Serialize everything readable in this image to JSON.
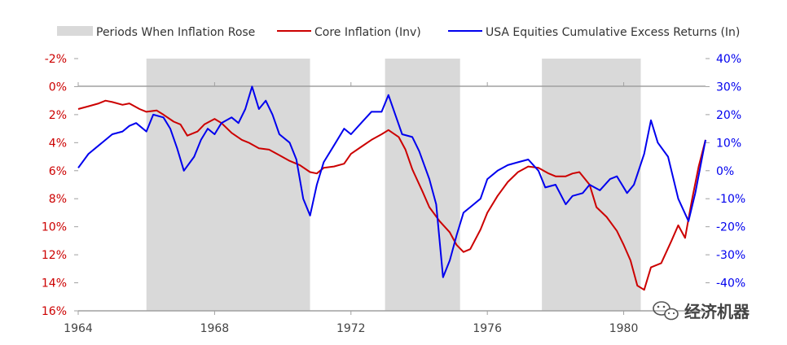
{
  "chart_data": {
    "type": "line",
    "title": "",
    "legend": {
      "placement": "top",
      "items": [
        {
          "label": "Periods When Inflation Rose",
          "kind": "band",
          "color": "#d9d9d9"
        },
        {
          "label": "Core Inflation (Inv)",
          "kind": "line",
          "color": "#cc0000"
        },
        {
          "label": "USA Equities Cumulative Excess Returns (In)",
          "kind": "line",
          "color": "#0000ee"
        }
      ]
    },
    "x_axis": {
      "range": [
        1964.0,
        1982.4
      ],
      "ticks": [
        1964,
        1968,
        1972,
        1976,
        1980
      ],
      "tick_labels": [
        "1964",
        "1968",
        "1972",
        "1976",
        "1980"
      ]
    },
    "left_axis": {
      "range_top_to_bottom": [
        -2,
        16
      ],
      "ticks": [
        -2,
        0,
        2,
        4,
        6,
        8,
        10,
        12,
        14,
        16
      ],
      "tick_labels": [
        "-2%",
        "0%",
        "2%",
        "4%",
        "6%",
        "8%",
        "10%",
        "12%",
        "14%",
        "16%"
      ],
      "color": "#cc0000"
    },
    "right_axis": {
      "range_top_to_bottom": [
        40,
        -50
      ],
      "ticks": [
        40,
        30,
        20,
        10,
        0,
        -10,
        -20,
        -30,
        -40
      ],
      "tick_labels": [
        "40%",
        "30%",
        "20%",
        "10%",
        "0%",
        "-10%",
        "-20%",
        "-30%",
        "-40%"
      ],
      "color": "#0000ee"
    },
    "shaded_periods": [
      {
        "start": 1966.0,
        "end": 1970.8
      },
      {
        "start": 1973.0,
        "end": 1975.2
      },
      {
        "start": 1977.6,
        "end": 1980.5
      }
    ],
    "series": [
      {
        "name": "Core Inflation (Inv)",
        "axis": "left",
        "color": "#cc0000",
        "points": [
          [
            1964.0,
            1.6
          ],
          [
            1964.3,
            1.4
          ],
          [
            1964.6,
            1.2
          ],
          [
            1964.8,
            1.0
          ],
          [
            1965.0,
            1.1
          ],
          [
            1965.3,
            1.3
          ],
          [
            1965.5,
            1.2
          ],
          [
            1965.8,
            1.6
          ],
          [
            1966.0,
            1.8
          ],
          [
            1966.3,
            1.7
          ],
          [
            1966.5,
            2.0
          ],
          [
            1966.8,
            2.5
          ],
          [
            1967.0,
            2.7
          ],
          [
            1967.2,
            3.5
          ],
          [
            1967.5,
            3.2
          ],
          [
            1967.7,
            2.7
          ],
          [
            1968.0,
            2.3
          ],
          [
            1968.2,
            2.6
          ],
          [
            1968.5,
            3.3
          ],
          [
            1968.8,
            3.8
          ],
          [
            1969.0,
            4.0
          ],
          [
            1969.3,
            4.4
          ],
          [
            1969.6,
            4.5
          ],
          [
            1969.9,
            4.9
          ],
          [
            1970.2,
            5.3
          ],
          [
            1970.5,
            5.6
          ],
          [
            1970.8,
            6.1
          ],
          [
            1971.0,
            6.2
          ],
          [
            1971.2,
            5.8
          ],
          [
            1971.5,
            5.7
          ],
          [
            1971.8,
            5.5
          ],
          [
            1972.0,
            4.8
          ],
          [
            1972.3,
            4.3
          ],
          [
            1972.6,
            3.8
          ],
          [
            1972.9,
            3.4
          ],
          [
            1973.1,
            3.1
          ],
          [
            1973.4,
            3.6
          ],
          [
            1973.6,
            4.5
          ],
          [
            1973.8,
            5.9
          ],
          [
            1974.1,
            7.5
          ],
          [
            1974.3,
            8.6
          ],
          [
            1974.6,
            9.6
          ],
          [
            1974.9,
            10.4
          ],
          [
            1975.1,
            11.3
          ],
          [
            1975.3,
            11.8
          ],
          [
            1975.5,
            11.6
          ],
          [
            1975.8,
            10.2
          ],
          [
            1976.0,
            9.0
          ],
          [
            1976.3,
            7.8
          ],
          [
            1976.6,
            6.8
          ],
          [
            1976.9,
            6.1
          ],
          [
            1977.2,
            5.7
          ],
          [
            1977.5,
            5.8
          ],
          [
            1977.8,
            6.2
          ],
          [
            1978.0,
            6.4
          ],
          [
            1978.3,
            6.4
          ],
          [
            1978.5,
            6.2
          ],
          [
            1978.7,
            6.1
          ],
          [
            1979.0,
            7.0
          ],
          [
            1979.2,
            8.6
          ],
          [
            1979.5,
            9.3
          ],
          [
            1979.8,
            10.3
          ],
          [
            1980.0,
            11.3
          ],
          [
            1980.2,
            12.4
          ],
          [
            1980.4,
            14.2
          ],
          [
            1980.6,
            14.5
          ],
          [
            1980.8,
            12.9
          ],
          [
            1981.1,
            12.6
          ],
          [
            1981.4,
            11.0
          ],
          [
            1981.6,
            9.9
          ],
          [
            1981.8,
            10.8
          ],
          [
            1982.0,
            8.1
          ],
          [
            1982.2,
            5.7
          ],
          [
            1982.4,
            3.8
          ]
        ]
      },
      {
        "name": "USA Equities Cumulative Excess Returns (In)",
        "axis": "right",
        "color": "#0000ee",
        "points": [
          [
            1964.0,
            1.0
          ],
          [
            1964.3,
            6.0
          ],
          [
            1964.6,
            9.0
          ],
          [
            1964.8,
            11.0
          ],
          [
            1965.0,
            13.0
          ],
          [
            1965.3,
            14.0
          ],
          [
            1965.5,
            16.0
          ],
          [
            1965.7,
            17.0
          ],
          [
            1966.0,
            14.0
          ],
          [
            1966.2,
            20.0
          ],
          [
            1966.5,
            19.0
          ],
          [
            1966.7,
            15.0
          ],
          [
            1966.9,
            8.0
          ],
          [
            1967.1,
            0.0
          ],
          [
            1967.4,
            5.0
          ],
          [
            1967.6,
            11.0
          ],
          [
            1967.8,
            15.0
          ],
          [
            1968.0,
            13.0
          ],
          [
            1968.2,
            17.0
          ],
          [
            1968.5,
            19.0
          ],
          [
            1968.7,
            17.0
          ],
          [
            1968.9,
            22.0
          ],
          [
            1969.1,
            30.0
          ],
          [
            1969.3,
            22.0
          ],
          [
            1969.5,
            25.0
          ],
          [
            1969.7,
            20.0
          ],
          [
            1969.9,
            13.0
          ],
          [
            1970.2,
            10.0
          ],
          [
            1970.4,
            4.0
          ],
          [
            1970.6,
            -10.0
          ],
          [
            1970.8,
            -16.0
          ],
          [
            1971.0,
            -5.0
          ],
          [
            1971.2,
            3.0
          ],
          [
            1971.5,
            9.0
          ],
          [
            1971.8,
            15.0
          ],
          [
            1972.0,
            13.0
          ],
          [
            1972.3,
            17.0
          ],
          [
            1972.6,
            21.0
          ],
          [
            1972.9,
            21.0
          ],
          [
            1973.1,
            27.0
          ],
          [
            1973.3,
            20.0
          ],
          [
            1973.5,
            13.0
          ],
          [
            1973.8,
            12.0
          ],
          [
            1974.0,
            7.0
          ],
          [
            1974.3,
            -3.0
          ],
          [
            1974.5,
            -12.0
          ],
          [
            1974.7,
            -38.0
          ],
          [
            1974.9,
            -32.0
          ],
          [
            1975.1,
            -23.0
          ],
          [
            1975.3,
            -15.0
          ],
          [
            1975.5,
            -13.0
          ],
          [
            1975.8,
            -10.0
          ],
          [
            1976.0,
            -3.0
          ],
          [
            1976.3,
            0.0
          ],
          [
            1976.6,
            2.0
          ],
          [
            1976.9,
            3.0
          ],
          [
            1977.2,
            4.0
          ],
          [
            1977.5,
            0.0
          ],
          [
            1977.7,
            -6.0
          ],
          [
            1978.0,
            -5.0
          ],
          [
            1978.3,
            -12.0
          ],
          [
            1978.5,
            -9.0
          ],
          [
            1978.8,
            -8.0
          ],
          [
            1979.0,
            -5.0
          ],
          [
            1979.3,
            -7.0
          ],
          [
            1979.6,
            -3.0
          ],
          [
            1979.8,
            -2.0
          ],
          [
            1980.1,
            -8.0
          ],
          [
            1980.3,
            -5.0
          ],
          [
            1980.6,
            6.0
          ],
          [
            1980.8,
            18.0
          ],
          [
            1981.0,
            10.0
          ],
          [
            1981.3,
            5.0
          ],
          [
            1981.6,
            -10.0
          ],
          [
            1981.9,
            -18.0
          ],
          [
            1982.1,
            -8.0
          ],
          [
            1982.4,
            11.0
          ]
        ]
      }
    ]
  },
  "watermark": {
    "text": "经济机器",
    "icon": "wechat-icon"
  }
}
